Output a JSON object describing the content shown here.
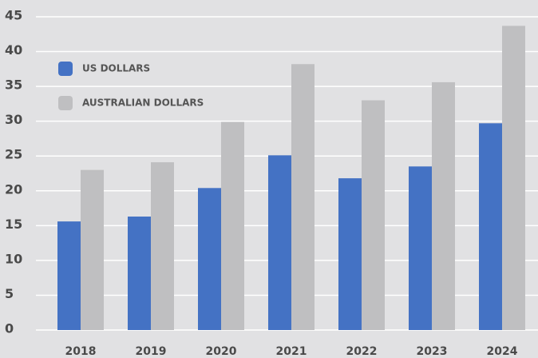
{
  "chart_data": {
    "type": "bar",
    "categories": [
      "2018",
      "2019",
      "2020",
      "2021",
      "2022",
      "2023",
      "2024"
    ],
    "series": [
      {
        "name": "US DOLLARS",
        "color": "#4472c4",
        "values": [
          15.6,
          16.3,
          20.4,
          25.1,
          21.8,
          23.5,
          29.7
        ]
      },
      {
        "name": "AUSTRALIAN DOLLARS",
        "color": "#bfbfc1",
        "values": [
          23.0,
          24.1,
          29.9,
          38.2,
          33.0,
          35.6,
          43.7
        ]
      }
    ],
    "ylim": [
      0,
      45
    ],
    "yticks": [
      0,
      5,
      10,
      15,
      20,
      25,
      30,
      35,
      40,
      45
    ],
    "grid": true,
    "legend": "top-left"
  }
}
